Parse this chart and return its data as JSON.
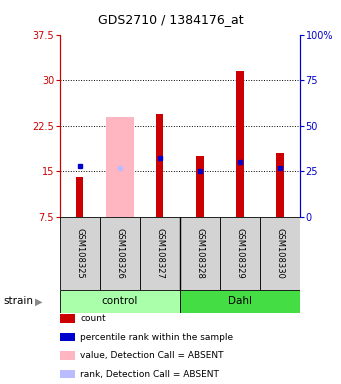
{
  "title": "GDS2710 / 1384176_at",
  "samples": [
    "GSM108325",
    "GSM108326",
    "GSM108327",
    "GSM108328",
    "GSM108329",
    "GSM108330"
  ],
  "ylim_left": [
    7.5,
    37.5
  ],
  "ylim_right": [
    0,
    100
  ],
  "yticks_left": [
    7.5,
    15,
    22.5,
    30,
    37.5
  ],
  "yticks_right": [
    0,
    25,
    50,
    75,
    100
  ],
  "ytick_labels_left": [
    "7.5",
    "15",
    "22.5",
    "30",
    "37.5"
  ],
  "ytick_labels_right": [
    "0",
    "25",
    "50",
    "75",
    "100%"
  ],
  "red_bars_top": [
    14.0,
    7.5,
    24.5,
    17.5,
    31.5,
    18.0
  ],
  "pink_bars_top": [
    7.5,
    24.0,
    7.5,
    7.5,
    7.5,
    7.5
  ],
  "blue_y": [
    15.8,
    15.5,
    17.2,
    15.0,
    16.5,
    15.5
  ],
  "blue_absent": [
    false,
    true,
    false,
    false,
    false,
    false
  ],
  "bar_bottom": 7.5,
  "left_axis_color": "#CC0000",
  "right_axis_color": "#0000CC",
  "sample_box_color": "#D3D3D3",
  "ctrl_color": "#AAFFAA",
  "dahl_color": "#44DD44",
  "legend_colors": [
    "#CC0000",
    "#0000CC",
    "#FFB6C1",
    "#BBBBFF"
  ],
  "legend_labels": [
    "count",
    "percentile rank within the sample",
    "value, Detection Call = ABSENT",
    "rank, Detection Call = ABSENT"
  ]
}
